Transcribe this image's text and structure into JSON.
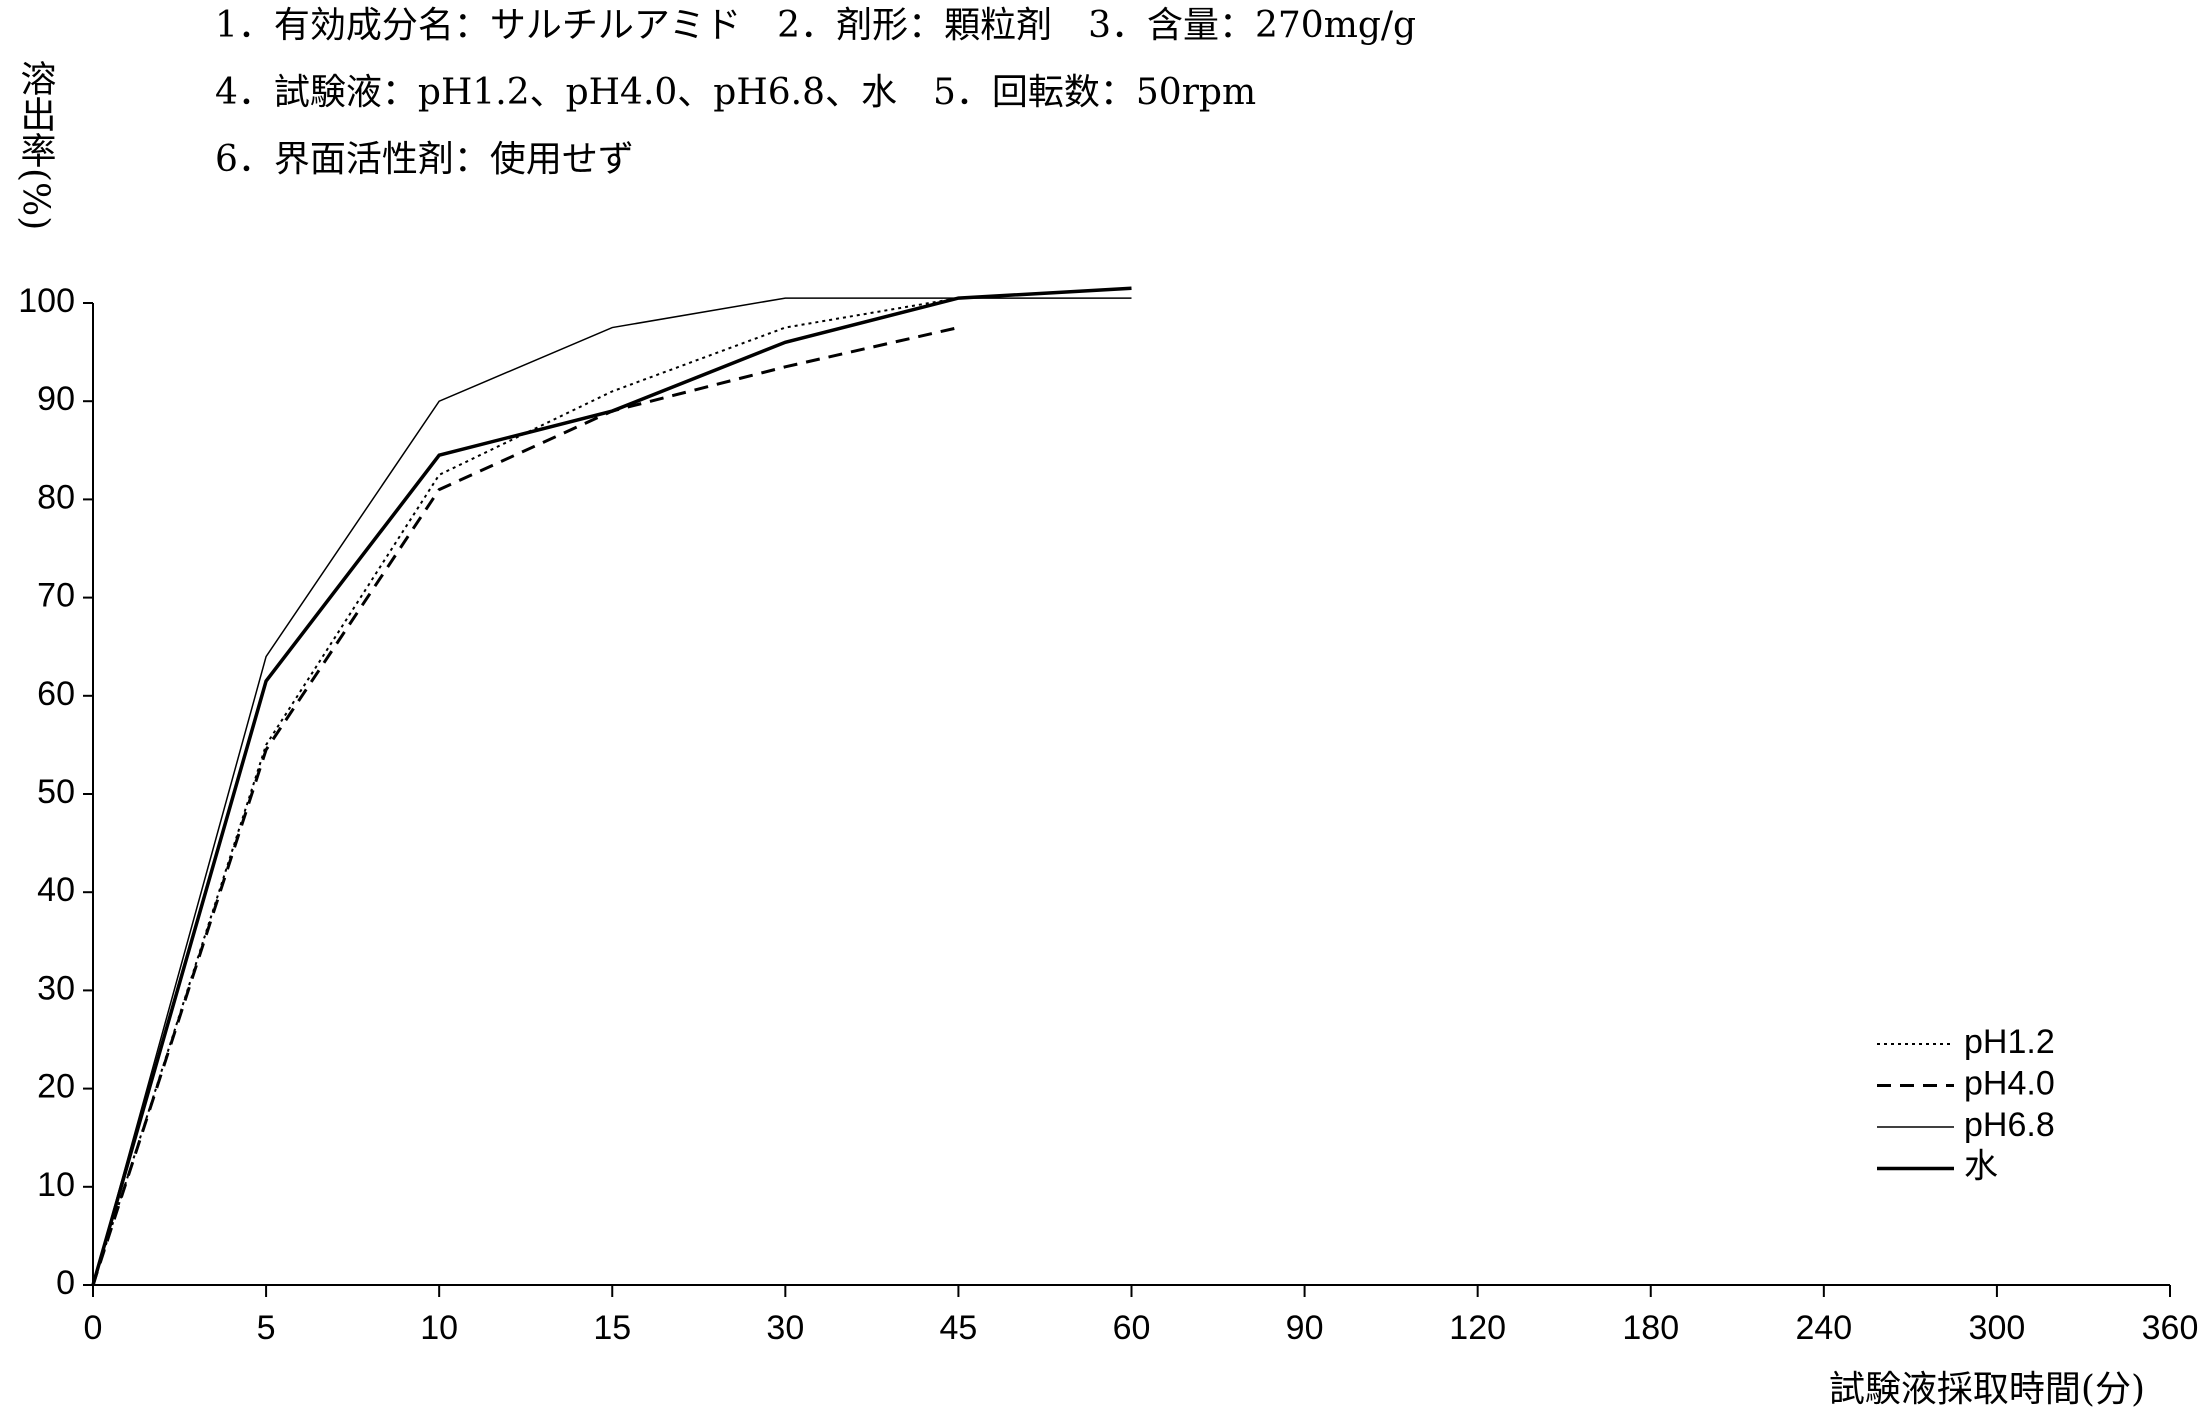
{
  "chart_data": {
    "type": "line",
    "header_lines": [
      "1．有効成分名：サルチルアミド　2．剤形：顆粒剤　3．含量：270mg/g",
      "4．試験液：pH1.2、pH4.0、pH6.8、水　5．回転数：50rpm",
      "6．界面活性剤：使用せず"
    ],
    "y_label": "溶出率(%)",
    "x_label": "試験液採取時間(分)",
    "categories": [
      "0",
      "5",
      "10",
      "15",
      "30",
      "45",
      "60",
      "90",
      "120",
      "180",
      "240",
      "300",
      "360"
    ],
    "series": [
      {
        "name": "pH1.2",
        "color": "#000000",
        "values": [
          0,
          55,
          82.5,
          91,
          97.5,
          100.5,
          null,
          null,
          null,
          null,
          null,
          null,
          null
        ]
      },
      {
        "name": "pH4.0",
        "color": "#000000",
        "values": [
          0,
          54.5,
          81,
          89,
          93.5,
          97.5,
          null,
          null,
          null,
          null,
          null,
          null,
          null
        ]
      },
      {
        "name": "pH6.8",
        "color": "#000000",
        "values": [
          0,
          64,
          90,
          97.5,
          100.5,
          100.5,
          100.5,
          null,
          null,
          null,
          null,
          null,
          null
        ]
      },
      {
        "name": "水",
        "color": "#000000",
        "values": [
          0,
          61.5,
          84.5,
          89,
          96,
          100.5,
          101.5,
          null,
          null,
          null,
          null,
          null,
          null
        ]
      }
    ],
    "ylim": [
      0,
      100
    ],
    "yticks": [
      0,
      10,
      20,
      30,
      40,
      50,
      60,
      70,
      80,
      90,
      100
    ],
    "legend": "bottom-right",
    "grid": false
  }
}
